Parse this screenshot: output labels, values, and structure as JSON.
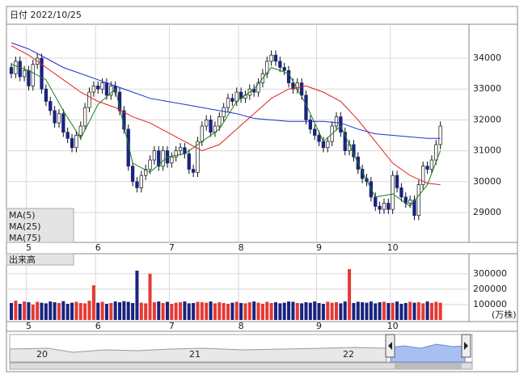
{
  "chart_data": [
    {
      "type": "candlestick",
      "title": "日付 2022/10/25",
      "categories": [
        null,
        null,
        null,
        null,
        "5",
        null,
        null,
        null,
        null,
        null,
        null,
        null,
        null,
        null,
        null,
        null,
        null,
        null,
        null,
        null,
        "6",
        null,
        null,
        null,
        null,
        null,
        null,
        null,
        null,
        null,
        null,
        null,
        null,
        null,
        null,
        null,
        null,
        "7",
        null,
        null,
        null,
        null,
        null,
        null,
        null,
        null,
        null,
        null,
        null,
        null,
        null,
        null,
        null,
        "8",
        null,
        null,
        null,
        null,
        null,
        null,
        null,
        null,
        null,
        null,
        null,
        null,
        null,
        null,
        null,
        null,
        null,
        "9",
        null,
        null,
        null,
        null,
        null,
        null,
        null,
        null,
        null,
        null,
        null,
        null,
        null,
        null,
        null,
        null,
        "10",
        null,
        null,
        null,
        null,
        null,
        null,
        null,
        null,
        null,
        null,
        null
      ],
      "open": [
        33700,
        33500,
        33900,
        33400,
        33600,
        33100,
        33800,
        34000,
        33000,
        32600,
        32300,
        31900,
        32200,
        31600,
        31400,
        31100,
        31500,
        31800,
        32400,
        32900,
        33100,
        33000,
        33200,
        32800,
        33100,
        32900,
        32300,
        31700,
        30500,
        30000,
        29800,
        30200,
        30400,
        30700,
        31000,
        30500,
        31000,
        30600,
        30800,
        31000,
        31100,
        30900,
        30400,
        30300,
        31300,
        31800,
        32000,
        31600,
        31800,
        32100,
        32400,
        32700,
        32600,
        32900,
        32700,
        32800,
        33000,
        32900,
        33200,
        33500,
        33900,
        34100,
        33900,
        33700,
        33600,
        33200,
        33000,
        33200,
        32800,
        32000,
        31700,
        31500,
        31300,
        31100,
        31300,
        31800,
        32100,
        31600,
        31000,
        31200,
        30800,
        30400,
        30100,
        30000,
        29500,
        29200,
        29100,
        29300,
        29100,
        30200,
        29800,
        29500,
        29300,
        29400,
        28900,
        29900,
        30500,
        30400,
        30700,
        31200
      ],
      "high": [
        33850,
        34050,
        34050,
        33750,
        33750,
        33950,
        34150,
        34150,
        33150,
        32750,
        32450,
        32350,
        32350,
        31750,
        31550,
        31650,
        31950,
        32550,
        33050,
        33250,
        33250,
        33350,
        33350,
        33250,
        33250,
        33050,
        32450,
        31850,
        30650,
        30150,
        30350,
        30550,
        30850,
        31150,
        31150,
        31150,
        31150,
        30950,
        31150,
        31250,
        31250,
        31050,
        30550,
        31450,
        31950,
        32150,
        32150,
        31950,
        32250,
        32550,
        32850,
        32850,
        33050,
        33050,
        32950,
        33150,
        33150,
        33350,
        33650,
        34050,
        34250,
        34250,
        34050,
        33850,
        33750,
        33350,
        33350,
        33350,
        32950,
        32150,
        31850,
        31650,
        31450,
        31450,
        31950,
        32250,
        32250,
        31750,
        31350,
        31350,
        30950,
        30550,
        30250,
        30150,
        29650,
        29350,
        29450,
        29450,
        30350,
        30350,
        29950,
        29650,
        29550,
        29550,
        30050,
        30650,
        30650,
        30850,
        31350,
        31950
      ],
      "low": [
        33350,
        33350,
        33250,
        33250,
        32950,
        32950,
        33650,
        32850,
        32450,
        32150,
        31750,
        31750,
        31450,
        31250,
        30950,
        30950,
        31350,
        31650,
        32250,
        32750,
        32850,
        32850,
        32650,
        32650,
        32750,
        32150,
        31550,
        30350,
        29850,
        29650,
        29650,
        30050,
        30250,
        30550,
        30350,
        30350,
        30450,
        30450,
        30650,
        30850,
        30750,
        30250,
        30150,
        30150,
        31150,
        31650,
        31450,
        31450,
        31650,
        31950,
        32250,
        32450,
        32450,
        32550,
        32550,
        32650,
        32750,
        32750,
        33050,
        33350,
        33750,
        33750,
        33550,
        33450,
        33050,
        32850,
        32850,
        32650,
        31850,
        31550,
        31350,
        31150,
        30950,
        30950,
        31150,
        31650,
        31450,
        30850,
        30850,
        30650,
        30250,
        29950,
        29850,
        29350,
        29050,
        28950,
        28950,
        28950,
        28950,
        29650,
        29350,
        29150,
        29150,
        28750,
        28750,
        29750,
        30250,
        30250,
        30550,
        31050
      ],
      "close": [
        33500,
        33900,
        33400,
        33600,
        33100,
        33800,
        34000,
        33000,
        32600,
        32300,
        31900,
        32200,
        31600,
        31400,
        31100,
        31500,
        31800,
        32400,
        32900,
        33100,
        33000,
        33200,
        32800,
        33100,
        32900,
        32300,
        31700,
        30500,
        30000,
        29800,
        30200,
        30400,
        30700,
        31000,
        30500,
        31000,
        30600,
        30800,
        31000,
        31100,
        30900,
        30400,
        30300,
        31300,
        31800,
        32000,
        31600,
        31800,
        32100,
        32400,
        32700,
        32600,
        32900,
        32700,
        32800,
        33000,
        32900,
        33200,
        33500,
        33900,
        34100,
        33900,
        33700,
        33600,
        33200,
        33000,
        33200,
        32800,
        32000,
        31700,
        31500,
        31300,
        31100,
        31300,
        31800,
        32100,
        31600,
        31000,
        31200,
        30800,
        30400,
        30100,
        30000,
        29500,
        29200,
        29100,
        29300,
        29100,
        30200,
        29800,
        29500,
        29300,
        29400,
        28900,
        29900,
        30500,
        30400,
        30700,
        31200,
        31800
      ],
      "up_color": "#ffffff",
      "down_color": "#1a237e",
      "ylim": [
        28030,
        35100
      ],
      "yticks": [
        29000,
        30000,
        31000,
        32000,
        33000,
        34000
      ],
      "grid": true,
      "series": [
        {
          "name": "MA(5)",
          "color": "#1e7b1e",
          "x": [
            0,
            4,
            8,
            12,
            16,
            20,
            24,
            28,
            32,
            36,
            40,
            44,
            48,
            52,
            56,
            60,
            64,
            68,
            72,
            76,
            80,
            84,
            88,
            92,
            96,
            99
          ],
          "values": [
            33800,
            33600,
            33300,
            32300,
            31400,
            32500,
            33000,
            30600,
            30300,
            30800,
            30900,
            31300,
            31700,
            32600,
            33000,
            33700,
            33500,
            32500,
            31300,
            31800,
            30600,
            29500,
            29600,
            29200,
            29900,
            31000
          ]
        },
        {
          "name": "MA(25)",
          "color": "#e02020",
          "x": [
            0,
            4,
            8,
            12,
            16,
            20,
            24,
            28,
            32,
            36,
            40,
            44,
            48,
            52,
            56,
            60,
            64,
            68,
            72,
            76,
            80,
            84,
            88,
            92,
            96,
            99
          ],
          "values": [
            34400,
            34100,
            33700,
            33300,
            32900,
            32600,
            32400,
            32100,
            31900,
            31600,
            31300,
            31000,
            31200,
            31700,
            32200,
            32700,
            33000,
            33100,
            32900,
            32600,
            32000,
            31300,
            30600,
            30200,
            29950,
            29900
          ]
        },
        {
          "name": "MA(75)",
          "color": "#2030d0",
          "x": [
            0,
            4,
            8,
            12,
            16,
            20,
            24,
            28,
            32,
            36,
            40,
            44,
            48,
            52,
            56,
            60,
            64,
            68,
            72,
            76,
            80,
            84,
            88,
            92,
            96,
            99
          ],
          "values": [
            34500,
            34300,
            34000,
            33700,
            33500,
            33300,
            33100,
            32900,
            32700,
            32600,
            32500,
            32400,
            32300,
            32200,
            32050,
            32000,
            31950,
            31950,
            31950,
            31900,
            31700,
            31550,
            31500,
            31450,
            31400,
            31400
          ]
        }
      ]
    },
    {
      "type": "bar",
      "title": "出来高",
      "unit": "(万株)",
      "categories": [
        null,
        null,
        null,
        null,
        "5",
        null,
        null,
        null,
        null,
        null,
        null,
        null,
        null,
        null,
        null,
        null,
        null,
        null,
        null,
        null,
        "6",
        null,
        null,
        null,
        null,
        null,
        null,
        null,
        null,
        null,
        null,
        null,
        null,
        null,
        null,
        null,
        null,
        "7",
        null,
        null,
        null,
        null,
        null,
        null,
        null,
        null,
        null,
        null,
        null,
        null,
        null,
        null,
        null,
        "8",
        null,
        null,
        null,
        null,
        null,
        null,
        null,
        null,
        null,
        null,
        null,
        null,
        null,
        null,
        null,
        null,
        null,
        "9",
        null,
        null,
        null,
        null,
        null,
        null,
        null,
        null,
        null,
        null,
        null,
        null,
        null,
        null,
        null,
        null,
        "10",
        null,
        null,
        null,
        null,
        null,
        null,
        null,
        null,
        null,
        null,
        null
      ],
      "values": [
        110000,
        125000,
        105000,
        120000,
        115000,
        100000,
        118000,
        112000,
        108000,
        120000,
        115000,
        110000,
        122000,
        105000,
        112000,
        118000,
        110000,
        108000,
        125000,
        225000,
        112000,
        118000,
        105000,
        110000,
        120000,
        115000,
        122000,
        118000,
        110000,
        320000,
        112000,
        108000,
        300000,
        115000,
        120000,
        110000,
        118000,
        105000,
        112000,
        115000,
        120000,
        108000,
        110000,
        118000,
        115000,
        112000,
        120000,
        108000,
        115000,
        110000,
        105000,
        112000,
        118000,
        110000,
        108000,
        115000,
        120000,
        112000,
        105000,
        118000,
        110000,
        115000,
        108000,
        112000,
        120000,
        118000,
        110000,
        108000,
        115000,
        112000,
        120000,
        110000,
        105000,
        118000,
        112000,
        115000,
        108000,
        120000,
        330000,
        110000,
        118000,
        115000,
        112000,
        120000,
        108000,
        115000,
        118000,
        110000,
        112000,
        120000,
        105000,
        110000,
        118000,
        112000,
        115000,
        108000,
        120000,
        110000,
        118000,
        112000
      ],
      "up_color": "#e53935",
      "down_color": "#1a237e",
      "ylim": [
        0,
        430000
      ],
      "yticks": [
        100000,
        200000,
        300000
      ],
      "grid": true
    }
  ],
  "navigator": {
    "labels": [
      "20",
      "21",
      "22"
    ]
  }
}
